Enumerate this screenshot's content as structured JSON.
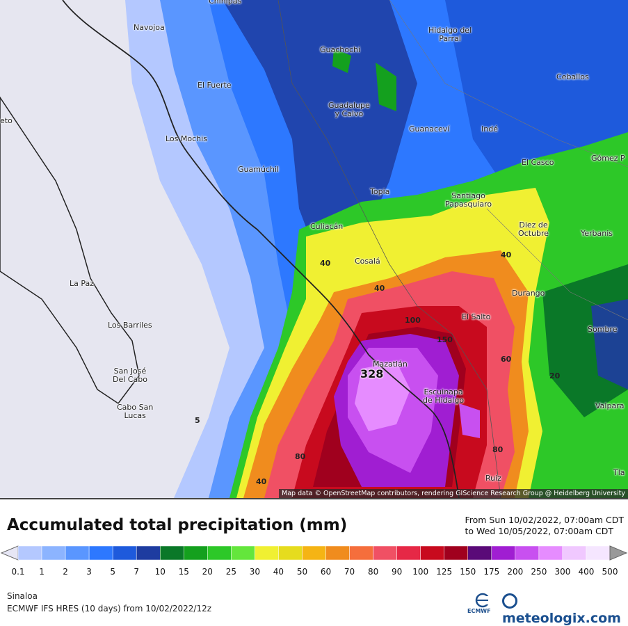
{
  "map": {
    "attribution": "Map data © OpenStreetMap contributors, rendering GIScience Research Group @ Heidelberg University",
    "max_value": "328",
    "cities": [
      {
        "name": "Chihuahua (partial)",
        "label": "Chinipas"
      },
      {
        "name": "Navojoa",
        "label": "Navojoa"
      },
      {
        "name": "Guachochi",
        "label": "Guachochi"
      },
      {
        "name": "Hidalgo del Parral",
        "label": "Hidalgo del\nParral"
      },
      {
        "name": "El Fuerte",
        "label": "El Fuerte"
      },
      {
        "name": "Ceballos",
        "label": "Ceballos"
      },
      {
        "name": "Guadalupe y Calvo",
        "label": "Guadalupe\ny Calvo"
      },
      {
        "name": "Guanacevi",
        "label": "Guanaceví"
      },
      {
        "name": "Inde",
        "label": "Indé"
      },
      {
        "name": "Los Mochis",
        "label": "Los Mochis"
      },
      {
        "name": "El Casco",
        "label": "El Casco"
      },
      {
        "name": "Gomez Palacio",
        "label": "Gómez P"
      },
      {
        "name": "Guamuchil",
        "label": "Guamúchil"
      },
      {
        "name": "Topia",
        "label": "Topia"
      },
      {
        "name": "Santiago Papasquiaro",
        "label": "Santiago\nPapasquiaro"
      },
      {
        "name": "Culiacan",
        "label": "Culiacán"
      },
      {
        "name": "Diez de Octubre",
        "label": "Diez de\nOctubre"
      },
      {
        "name": "Yerbanis",
        "label": "Yerbanis"
      },
      {
        "name": "Cosala",
        "label": "Cosalá"
      },
      {
        "name": "La Paz",
        "label": "La Paz"
      },
      {
        "name": "Durango",
        "label": "Durango"
      },
      {
        "name": "El Salto",
        "label": "El Salto"
      },
      {
        "name": "Los Barriles",
        "label": "Los Barriles"
      },
      {
        "name": "Sombrerete",
        "label": "Sombre"
      },
      {
        "name": "Mazatlan",
        "label": "Mazatlán"
      },
      {
        "name": "San Jose del Cabo",
        "label": "San José\nDel Cabo"
      },
      {
        "name": "Escuinapa de Hidalgo",
        "label": "Escuinapa\nde Hidalgo"
      },
      {
        "name": "Cabo San Lucas",
        "label": "Cabo San\nLucas"
      },
      {
        "name": "Valparaiso",
        "label": "Valpara"
      },
      {
        "name": "Ruiz",
        "label": "Ruiz"
      },
      {
        "name": "Tlaltenango",
        "label": "Tla"
      },
      {
        "name": "Loreto (partial)",
        "label": "eto"
      }
    ],
    "contour_labels": [
      "40",
      "40",
      "100",
      "60",
      "80",
      "20",
      "5",
      "80",
      "40",
      "40",
      "150"
    ]
  },
  "legend": {
    "title": "Accumulated total precipitation (mm)",
    "period_line1": "From Sun 10/02/2022, 07:00am CDT",
    "period_line2": "to Wed 10/05/2022, 07:00am CDT",
    "thresholds": [
      "0.1",
      "1",
      "2",
      "3",
      "5",
      "7",
      "10",
      "15",
      "20",
      "25",
      "30",
      "40",
      "50",
      "60",
      "70",
      "80",
      "90",
      "100",
      "125",
      "150",
      "175",
      "200",
      "250",
      "300",
      "400",
      "500"
    ],
    "colors": [
      "#e6e6f5",
      "#b4c8ff",
      "#8cb4ff",
      "#5a96ff",
      "#2d78ff",
      "#1e5adc",
      "#1e3ca0",
      "#0a7828",
      "#14a01e",
      "#2dc828",
      "#64e63c",
      "#f0f032",
      "#e6dc1e",
      "#f5b414",
      "#f08c1e",
      "#f56e3c",
      "#f05064",
      "#e62846",
      "#c80a1e",
      "#a0001e",
      "#5a0a78",
      "#a01ed2",
      "#c850f0",
      "#e68cff",
      "#f0c8ff",
      "#f5e6ff",
      "#d2d2d2"
    ],
    "region": "Sinaloa",
    "model": "ECMWF IFS HRES (10 days) from 10/02/2022/12z",
    "ecmwf_logo_text": "ECMWF",
    "brand": "meteologix.com"
  }
}
